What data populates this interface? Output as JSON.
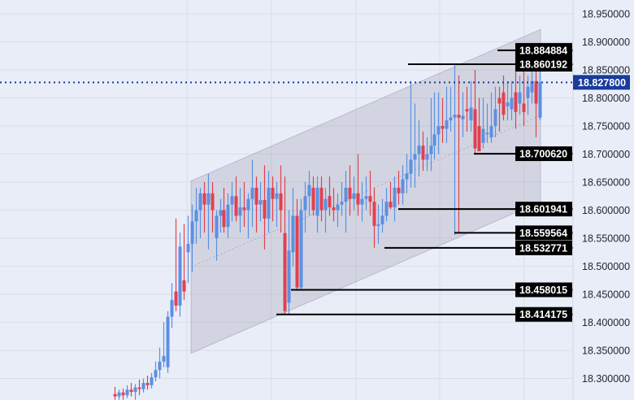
{
  "chart_data": {
    "type": "candlestick",
    "title": "",
    "xlabel": "",
    "ylabel": "",
    "ylim": [
      18.262,
      18.976
    ],
    "grid": true,
    "y_ticks": [
      "18.950000",
      "18.900000",
      "18.850000",
      "18.800000",
      "18.750000",
      "18.700000",
      "18.650000",
      "18.600000",
      "18.550000",
      "18.500000",
      "18.450000",
      "18.400000",
      "18.350000",
      "18.300000"
    ],
    "y_tick_values": [
      18.95,
      18.9,
      18.85,
      18.8,
      18.75,
      18.7,
      18.65,
      18.6,
      18.55,
      18.5,
      18.45,
      18.4,
      18.35,
      18.3
    ],
    "candles_ohlc": [
      [
        18.272,
        18.285,
        18.262,
        18.268
      ],
      [
        18.268,
        18.28,
        18.262,
        18.275
      ],
      [
        18.275,
        18.282,
        18.262,
        18.27
      ],
      [
        18.27,
        18.288,
        18.265,
        18.28
      ],
      [
        18.28,
        18.292,
        18.268,
        18.276
      ],
      [
        18.276,
        18.29,
        18.262,
        18.284
      ],
      [
        18.284,
        18.298,
        18.27,
        18.281
      ],
      [
        18.281,
        18.3,
        18.275,
        18.292
      ],
      [
        18.292,
        18.305,
        18.28,
        18.288
      ],
      [
        18.288,
        18.31,
        18.282,
        18.302
      ],
      [
        18.302,
        18.33,
        18.295,
        18.315
      ],
      [
        18.315,
        18.355,
        18.3,
        18.33
      ],
      [
        18.33,
        18.4,
        18.32,
        18.34
      ],
      [
        18.32,
        18.42,
        18.31,
        18.41
      ],
      [
        18.41,
        18.47,
        18.39,
        18.44
      ],
      [
        18.455,
        18.585,
        18.42,
        18.43
      ],
      [
        18.43,
        18.56,
        18.41,
        18.535
      ],
      [
        18.475,
        18.575,
        18.44,
        18.455
      ],
      [
        18.525,
        18.59,
        18.47,
        18.54
      ],
      [
        18.54,
        18.61,
        18.49,
        18.58
      ],
      [
        18.58,
        18.64,
        18.54,
        18.6
      ],
      [
        18.6,
        18.64,
        18.55,
        18.63
      ],
      [
        18.63,
        18.65,
        18.56,
        18.61
      ],
      [
        18.61,
        18.665,
        18.53,
        18.63
      ],
      [
        18.63,
        18.65,
        18.56,
        18.6
      ],
      [
        18.55,
        18.6,
        18.51,
        18.59
      ],
      [
        18.59,
        18.62,
        18.56,
        18.6
      ],
      [
        18.6,
        18.64,
        18.56,
        18.57
      ],
      [
        18.57,
        18.63,
        18.55,
        18.61
      ],
      [
        18.61,
        18.65,
        18.58,
        18.625
      ],
      [
        18.625,
        18.66,
        18.58,
        18.59
      ],
      [
        18.59,
        18.64,
        18.56,
        18.605
      ],
      [
        18.605,
        18.65,
        18.57,
        18.6
      ],
      [
        18.6,
        18.63,
        18.55,
        18.62
      ],
      [
        18.62,
        18.69,
        18.57,
        18.64
      ],
      [
        18.64,
        18.66,
        18.56,
        18.61
      ],
      [
        18.61,
        18.65,
        18.58,
        18.618
      ],
      [
        18.618,
        18.68,
        18.53,
        18.585
      ],
      [
        18.585,
        18.67,
        18.56,
        18.64
      ],
      [
        18.64,
        18.66,
        18.58,
        18.62
      ],
      [
        18.62,
        18.65,
        18.57,
        18.63
      ],
      [
        18.63,
        18.68,
        18.56,
        18.6
      ],
      [
        18.559,
        18.66,
        18.414,
        18.42
      ],
      [
        18.435,
        18.6,
        18.414,
        18.528
      ],
      [
        18.525,
        18.64,
        18.5,
        18.59
      ],
      [
        18.59,
        18.62,
        18.458,
        18.462
      ],
      [
        18.462,
        18.62,
        18.458,
        18.6
      ],
      [
        18.6,
        18.65,
        18.56,
        18.625
      ],
      [
        18.625,
        18.67,
        18.59,
        18.645
      ],
      [
        18.64,
        18.66,
        18.59,
        18.6
      ],
      [
        18.59,
        18.66,
        18.56,
        18.64
      ],
      [
        18.64,
        18.66,
        18.58,
        18.6
      ],
      [
        18.6,
        18.64,
        18.56,
        18.62
      ],
      [
        18.625,
        18.66,
        18.59,
        18.605
      ],
      [
        18.605,
        18.64,
        18.58,
        18.6
      ],
      [
        18.6,
        18.63,
        18.57,
        18.61
      ],
      [
        18.61,
        18.65,
        18.59,
        18.615
      ],
      [
        18.615,
        18.67,
        18.56,
        18.64
      ],
      [
        18.64,
        18.68,
        18.59,
        18.62
      ],
      [
        18.62,
        18.66,
        18.6,
        18.63
      ],
      [
        18.63,
        18.7,
        18.59,
        18.61
      ],
      [
        18.61,
        18.65,
        18.58,
        18.62
      ],
      [
        18.62,
        18.66,
        18.6,
        18.625
      ],
      [
        18.625,
        18.67,
        18.59,
        18.615
      ],
      [
        18.615,
        18.64,
        18.533,
        18.572
      ],
      [
        18.572,
        18.61,
        18.54,
        18.575
      ],
      [
        18.575,
        18.62,
        18.56,
        18.59
      ],
      [
        18.59,
        18.64,
        18.58,
        18.615
      ],
      [
        18.615,
        18.65,
        18.602,
        18.605
      ],
      [
        18.605,
        18.66,
        18.58,
        18.64
      ],
      [
        18.64,
        18.67,
        18.61,
        18.63
      ],
      [
        18.63,
        18.68,
        18.61,
        18.655
      ],
      [
        18.655,
        18.7,
        18.63,
        18.665
      ],
      [
        18.665,
        18.83,
        18.64,
        18.69
      ],
      [
        18.69,
        18.79,
        18.64,
        18.7
      ],
      [
        18.7,
        18.76,
        18.66,
        18.715
      ],
      [
        18.715,
        18.74,
        18.67,
        18.69
      ],
      [
        18.69,
        18.73,
        18.67,
        18.7
      ],
      [
        18.7,
        18.8,
        18.67,
        18.715
      ],
      [
        18.715,
        18.81,
        18.69,
        18.735
      ],
      [
        18.735,
        18.81,
        18.7,
        18.75
      ],
      [
        18.75,
        18.8,
        18.72,
        18.745
      ],
      [
        18.745,
        18.82,
        18.72,
        18.76
      ],
      [
        18.76,
        18.82,
        18.74,
        18.765
      ],
      [
        18.765,
        18.86,
        18.556,
        18.77
      ],
      [
        18.77,
        18.84,
        18.56,
        18.765
      ],
      [
        18.762,
        18.81,
        18.73,
        18.768
      ],
      [
        18.78,
        18.82,
        18.74,
        18.776
      ],
      [
        18.76,
        18.83,
        18.74,
        18.783
      ],
      [
        18.78,
        18.85,
        18.701,
        18.71
      ],
      [
        18.75,
        18.8,
        18.705,
        18.705
      ],
      [
        18.72,
        18.8,
        18.71,
        18.745
      ],
      [
        18.735,
        18.79,
        18.72,
        18.738
      ],
      [
        18.73,
        18.81,
        18.72,
        18.75
      ],
      [
        18.75,
        18.82,
        18.73,
        18.78
      ],
      [
        18.8,
        18.82,
        18.74,
        18.79
      ],
      [
        18.81,
        18.84,
        18.76,
        18.77
      ],
      [
        18.785,
        18.83,
        18.76,
        18.792
      ],
      [
        18.78,
        18.83,
        18.76,
        18.8
      ],
      [
        18.81,
        18.885,
        18.745,
        18.775
      ],
      [
        18.79,
        18.84,
        18.77,
        18.81
      ],
      [
        18.79,
        18.87,
        18.75,
        18.775
      ],
      [
        18.8,
        18.84,
        18.77,
        18.82
      ],
      [
        18.81,
        18.86,
        18.79,
        18.83
      ],
      [
        18.83,
        18.875,
        18.73,
        18.79
      ],
      [
        18.765,
        18.86,
        18.76,
        18.828
      ]
    ],
    "channel": {
      "upper_start": 18.652,
      "upper_end": 18.922,
      "lower_start": 18.345,
      "lower_end": 18.615
    },
    "current_price": {
      "value": 18.8278,
      "label": "18.827800"
    },
    "levels": [
      {
        "value": 18.884884,
        "label": "18.884884"
      },
      {
        "value": 18.860192,
        "label": "18.860192"
      },
      {
        "value": 18.70062,
        "label": "18.700620"
      },
      {
        "value": 18.601941,
        "label": "18.601941"
      },
      {
        "value": 18.559564,
        "label": "18.559564"
      },
      {
        "value": 18.532771,
        "label": "18.532771"
      },
      {
        "value": 18.458015,
        "label": "18.458015"
      },
      {
        "value": 18.414175,
        "label": "18.414175"
      }
    ],
    "colors": {
      "up": "#5b90e3",
      "down": "#e2404f",
      "background": "#e9edf8",
      "current_price": "#1a3a9c",
      "level": "#000000"
    }
  }
}
